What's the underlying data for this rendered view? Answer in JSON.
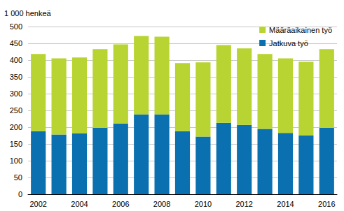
{
  "chart_data": {
    "type": "bar",
    "stacked": true,
    "y_label": "1 000 henkeä",
    "categories": [
      "2002",
      null,
      "2004",
      null,
      "2006",
      null,
      "2008",
      null,
      "2010",
      null,
      "2012",
      null,
      "2014",
      null,
      "2016"
    ],
    "series": [
      {
        "name": "Jatkuva työ",
        "color": "#0a70b0",
        "values": [
          188,
          178,
          182,
          198,
          211,
          238,
          238,
          188,
          172,
          213,
          207,
          195,
          183,
          175,
          198
        ]
      },
      {
        "name": "Määräaikainen työ",
        "color": "#b8d432",
        "values": [
          230,
          227,
          226,
          235,
          236,
          234,
          232,
          203,
          221,
          232,
          228,
          223,
          222,
          220,
          235
        ]
      }
    ],
    "ylim": [
      0,
      500
    ],
    "yticks": [
      0,
      50,
      100,
      150,
      200,
      250,
      300,
      350,
      400,
      450,
      500
    ],
    "grid": true,
    "legend": "top-right"
  }
}
